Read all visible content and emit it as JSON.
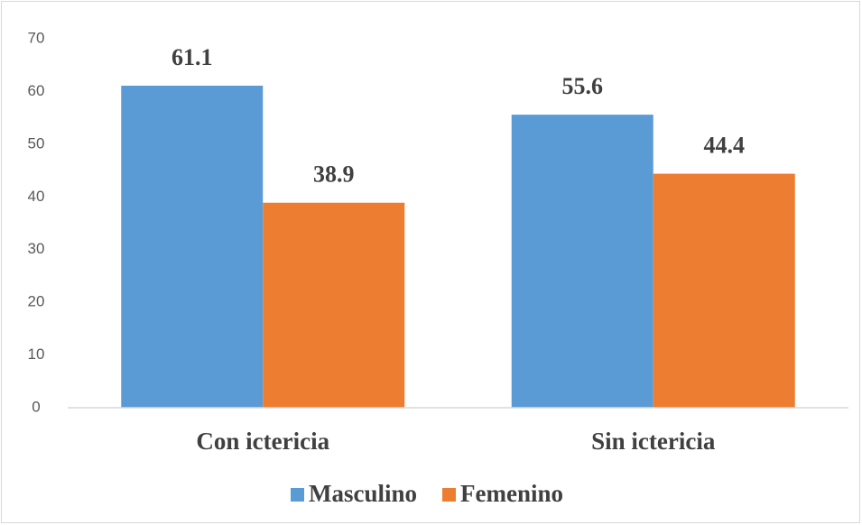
{
  "chart_data": {
    "type": "bar",
    "categories": [
      "Con ictericia",
      "Sin ictericia"
    ],
    "series": [
      {
        "name": "Masculino",
        "color": "#5b9bd5",
        "values": [
          61.1,
          55.6
        ]
      },
      {
        "name": "Femenino",
        "color": "#ed7d31",
        "values": [
          38.9,
          44.4
        ]
      }
    ],
    "ylim": [
      0,
      70
    ],
    "yticks": [
      0,
      10,
      20,
      30,
      40,
      50,
      60,
      70
    ],
    "grid": false,
    "legend": "bottom"
  }
}
